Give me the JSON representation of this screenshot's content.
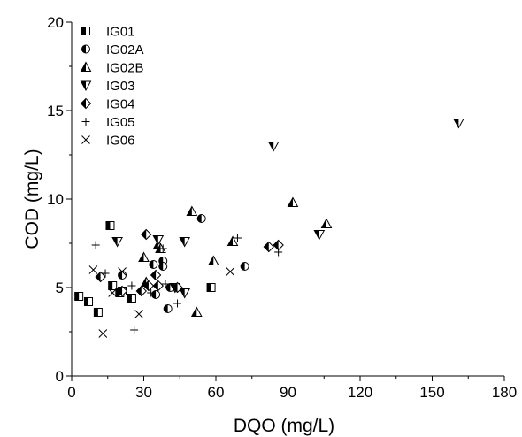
{
  "chart_data": {
    "type": "scatter",
    "title": "",
    "xlabel": "DQO (mg/L)",
    "ylabel": "COD (mg/L)",
    "xlim": [
      0,
      180
    ],
    "ylim": [
      0,
      20
    ],
    "xticks": [
      0,
      30,
      60,
      90,
      120,
      150,
      180
    ],
    "yticks": [
      0,
      5,
      10,
      15,
      20
    ],
    "xtick_labels": [
      "0",
      "30",
      "60",
      "90",
      "120",
      "150",
      "180"
    ],
    "ytick_labels": [
      "0",
      "5",
      "10",
      "15",
      "20"
    ],
    "grid": false,
    "legend_position": "top-left",
    "series": [
      {
        "name": "IG01",
        "marker": "half-square",
        "x": [
          3,
          7,
          11,
          16,
          17,
          20,
          21,
          25,
          58
        ],
        "y": [
          4.5,
          4.2,
          3.6,
          8.5,
          5.1,
          4.7,
          4.8,
          4.4,
          5.0
        ]
      },
      {
        "name": "IG02A",
        "marker": "half-circle",
        "x": [
          21,
          34,
          35,
          38,
          38,
          40,
          41,
          54,
          72
        ],
        "y": [
          5.7,
          6.3,
          4.6,
          6.5,
          6.2,
          3.8,
          5.0,
          8.9,
          6.2
        ]
      },
      {
        "name": "IG02B",
        "marker": "triangle-up",
        "x": [
          30,
          31,
          36,
          37,
          50,
          52,
          59,
          67,
          92,
          106
        ],
        "y": [
          6.7,
          5.3,
          7.4,
          7.2,
          9.3,
          3.6,
          6.5,
          7.6,
          9.8,
          8.6
        ]
      },
      {
        "name": "IG03",
        "marker": "triangle-down",
        "x": [
          19,
          36,
          43,
          47,
          47,
          84,
          103,
          161
        ],
        "y": [
          7.6,
          7.7,
          5.0,
          4.7,
          7.6,
          13.0,
          8.0,
          14.3
        ]
      },
      {
        "name": "IG04",
        "marker": "half-diamond",
        "x": [
          12,
          21,
          29,
          31,
          32,
          35,
          36,
          44,
          82,
          86
        ],
        "y": [
          5.6,
          4.8,
          4.8,
          8.0,
          5.1,
          5.7,
          5.1,
          5.0,
          7.3,
          7.4
        ]
      },
      {
        "name": "IG05",
        "marker": "plus",
        "x": [
          10,
          14,
          25,
          26,
          33,
          38,
          39,
          44,
          69,
          86
        ],
        "y": [
          7.4,
          5.8,
          5.1,
          2.6,
          4.7,
          7.2,
          5.2,
          4.1,
          7.8,
          7.0
        ]
      },
      {
        "name": "IG06",
        "marker": "cross",
        "x": [
          9,
          13,
          17,
          21,
          28,
          66
        ],
        "y": [
          6.0,
          2.4,
          4.7,
          5.9,
          3.5,
          5.9
        ]
      }
    ]
  }
}
